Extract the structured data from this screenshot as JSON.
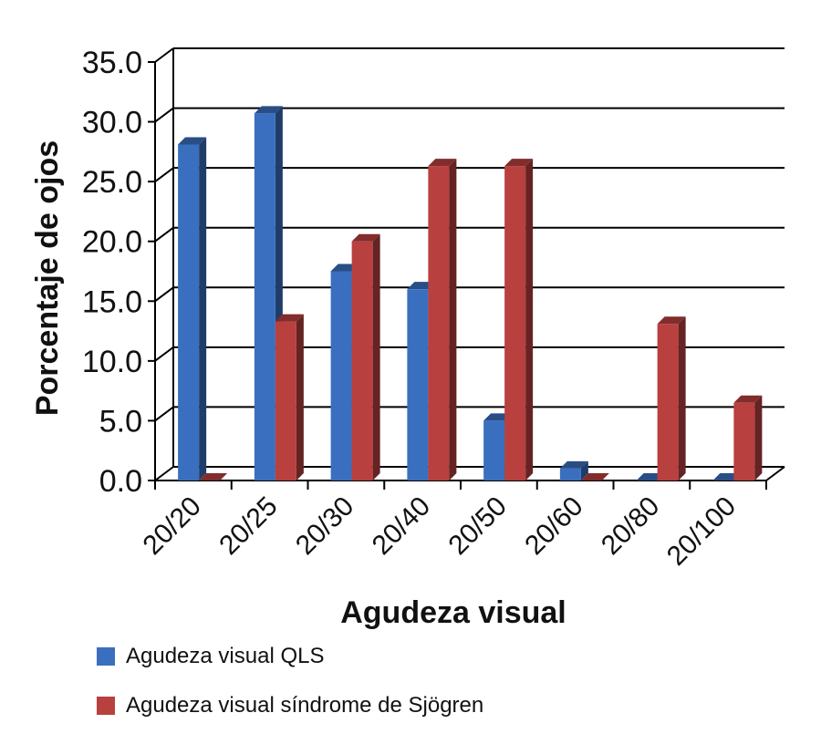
{
  "chart_data": {
    "type": "bar",
    "categories": [
      "20/20",
      "20/25",
      "20/30",
      "20/40",
      "20/50",
      "20/60",
      "20/80",
      "20/100"
    ],
    "series": [
      {
        "name": "Agudeza visual QLS",
        "values": [
          28.1,
          30.7,
          17.5,
          16.0,
          5.0,
          1.0,
          0.0,
          0.0
        ],
        "color": "#3a6fbf"
      },
      {
        "name": "Agudeza visual síndrome de Sjögren",
        "values": [
          0.0,
          13.3,
          20.0,
          26.3,
          26.3,
          0.0,
          13.1,
          6.5
        ],
        "color": "#b8403f"
      }
    ],
    "ylim": [
      0,
      35
    ],
    "yticks": [
      "0.0",
      "5.0",
      "10.0",
      "15.0",
      "20.0",
      "25.0",
      "30.0",
      "35.0"
    ],
    "ylabel": "Porcentaje de ojos",
    "xlabel": "Agudeza visual",
    "grid": true,
    "legend_position": "bottom-left",
    "style": "3d-clustered-column"
  }
}
